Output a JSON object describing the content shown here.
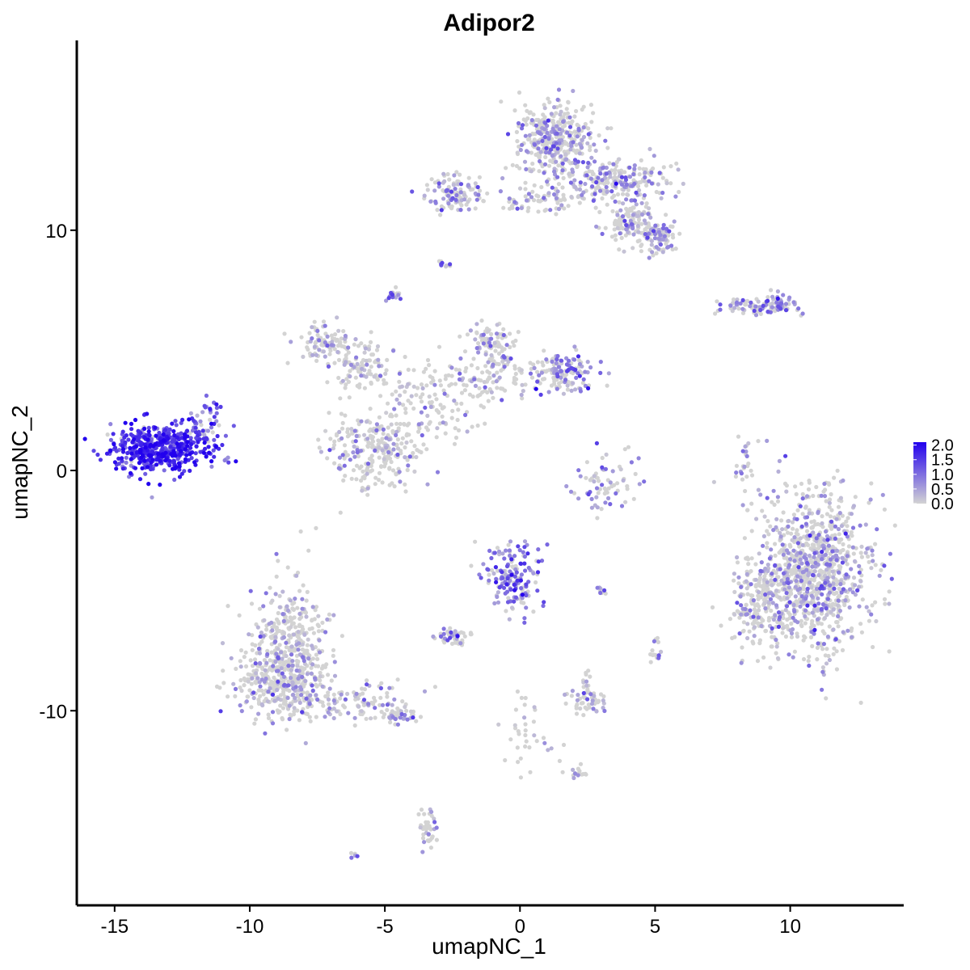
{
  "chart_data": {
    "type": "scatter",
    "title": "Adipor2",
    "xlabel": "umapNC_1",
    "ylabel": "umapNC_2",
    "xlim": [
      -16.4,
      14.2
    ],
    "ylim": [
      -18.1,
      17.9
    ],
    "x_ticks": [
      -15,
      -10,
      -5,
      0,
      5,
      10
    ],
    "y_ticks": [
      -10,
      0,
      10
    ],
    "x_tick_labels": [
      "-15",
      "-10",
      "-5",
      "0",
      "5",
      "10"
    ],
    "y_tick_labels": [
      "-10",
      "0",
      "10"
    ],
    "grid": false,
    "color_scale": {
      "low": "#d3d3d3",
      "high": "#2200ee",
      "min": 0.0,
      "max": 2.1,
      "breaks": [
        2.0,
        1.5,
        1.0,
        0.5,
        0.0
      ],
      "break_labels": [
        "2.0",
        "1.5",
        "1.0",
        "0.5",
        "0.0"
      ],
      "position": "right"
    },
    "clusters": [
      {
        "cx": -13.3,
        "cy": 0.9,
        "sx": 0.9,
        "sy": 0.5,
        "n": 520,
        "expr": 1.6
      },
      {
        "cx": -11.6,
        "cy": 2.0,
        "sx": 0.35,
        "sy": 0.6,
        "n": 40,
        "expr": 1.2
      },
      {
        "cx": -8.5,
        "cy": -7.5,
        "sx": 0.8,
        "sy": 1.3,
        "n": 450,
        "expr": 0.35
      },
      {
        "cx": -9.1,
        "cy": -9.0,
        "sx": 0.9,
        "sy": 0.6,
        "n": 180,
        "expr": 0.35
      },
      {
        "cx": -6.2,
        "cy": -9.6,
        "sx": 1.1,
        "sy": 0.35,
        "n": 120,
        "expr": 0.4
      },
      {
        "cx": -4.5,
        "cy": -10.2,
        "sx": 0.5,
        "sy": 0.2,
        "n": 40,
        "expr": 0.6
      },
      {
        "cx": 10.8,
        "cy": -4.2,
        "sx": 1.1,
        "sy": 1.6,
        "n": 1000,
        "expr": 0.45
      },
      {
        "cx": 8.9,
        "cy": -5.8,
        "sx": 0.5,
        "sy": 0.8,
        "n": 160,
        "expr": 0.3
      },
      {
        "cx": 1.3,
        "cy": 13.8,
        "sx": 0.7,
        "sy": 0.8,
        "n": 380,
        "expr": 0.5
      },
      {
        "cx": 3.6,
        "cy": 12.0,
        "sx": 0.9,
        "sy": 0.5,
        "n": 220,
        "expr": 0.55
      },
      {
        "cx": 5.1,
        "cy": 9.7,
        "sx": 0.4,
        "sy": 0.35,
        "n": 100,
        "expr": 0.4
      },
      {
        "cx": 4.0,
        "cy": 10.4,
        "sx": 0.5,
        "sy": 0.5,
        "n": 100,
        "expr": 0.35
      },
      {
        "cx": -2.4,
        "cy": 11.5,
        "sx": 0.6,
        "sy": 0.35,
        "n": 110,
        "expr": 0.5
      },
      {
        "cx": 0.8,
        "cy": 11.3,
        "sx": 0.8,
        "sy": 0.3,
        "n": 80,
        "expr": 0.35
      },
      {
        "cx": -7.2,
        "cy": 5.3,
        "sx": 0.5,
        "sy": 0.45,
        "n": 90,
        "expr": 0.4
      },
      {
        "cx": -5.9,
        "cy": 4.4,
        "sx": 0.7,
        "sy": 0.5,
        "n": 100,
        "expr": 0.3
      },
      {
        "cx": -5.3,
        "cy": 0.9,
        "sx": 0.9,
        "sy": 0.8,
        "n": 260,
        "expr": 0.35
      },
      {
        "cx": -1.0,
        "cy": 5.2,
        "sx": 0.4,
        "sy": 0.6,
        "n": 100,
        "expr": 0.45
      },
      {
        "cx": 1.7,
        "cy": 4.1,
        "sx": 0.5,
        "sy": 0.4,
        "n": 120,
        "expr": 0.85
      },
      {
        "cx": -1.0,
        "cy": 3.8,
        "sx": 1.7,
        "sy": 0.4,
        "n": 130,
        "expr": 0.3
      },
      {
        "cx": -3.3,
        "cy": 2.7,
        "sx": 0.9,
        "sy": 0.7,
        "n": 90,
        "expr": 0.3
      },
      {
        "cx": 8.2,
        "cy": 6.8,
        "sx": 0.6,
        "sy": 0.15,
        "n": 50,
        "expr": 0.55
      },
      {
        "cx": 9.6,
        "cy": 6.9,
        "sx": 0.4,
        "sy": 0.25,
        "n": 60,
        "expr": 0.8
      },
      {
        "cx": -0.3,
        "cy": -4.3,
        "sx": 0.5,
        "sy": 0.7,
        "n": 170,
        "expr": 0.95
      },
      {
        "cx": -2.5,
        "cy": -6.9,
        "sx": 0.35,
        "sy": 0.25,
        "n": 45,
        "expr": 0.5
      },
      {
        "cx": 3.2,
        "cy": -0.6,
        "sx": 0.6,
        "sy": 0.6,
        "n": 70,
        "expr": 0.7
      },
      {
        "cx": 2.5,
        "cy": -9.6,
        "sx": 0.35,
        "sy": 0.25,
        "n": 50,
        "expr": 0.45
      },
      {
        "cx": -3.4,
        "cy": -14.8,
        "sx": 0.2,
        "sy": 0.5,
        "n": 40,
        "expr": 0.5
      },
      {
        "cx": -4.7,
        "cy": 7.3,
        "sx": 0.15,
        "sy": 0.15,
        "n": 18,
        "expr": 1.0
      },
      {
        "cx": -2.8,
        "cy": 8.6,
        "sx": 0.15,
        "sy": 0.12,
        "n": 10,
        "expr": 0.8
      },
      {
        "cx": 8.3,
        "cy": 0.2,
        "sx": 0.2,
        "sy": 0.6,
        "n": 25,
        "expr": 0.4
      },
      {
        "cx": 0.3,
        "cy": -11.2,
        "sx": 0.5,
        "sy": 1.0,
        "n": 35,
        "expr": 0.25
      },
      {
        "cx": 2.0,
        "cy": -12.6,
        "sx": 0.3,
        "sy": 0.15,
        "n": 15,
        "expr": 0.6
      },
      {
        "cx": 5.0,
        "cy": -7.4,
        "sx": 0.12,
        "sy": 0.25,
        "n": 15,
        "expr": 0.7
      },
      {
        "cx": 3.0,
        "cy": -5.0,
        "sx": 0.15,
        "sy": 0.08,
        "n": 8,
        "expr": 0.9
      },
      {
        "cx": 2.5,
        "cy": -8.7,
        "sx": 0.1,
        "sy": 0.2,
        "n": 10,
        "expr": 0.5
      },
      {
        "cx": 4.0,
        "cy": 10.2,
        "sx": 0.1,
        "sy": 0.08,
        "n": 8,
        "expr": 0.9
      },
      {
        "cx": -6.1,
        "cy": -16.0,
        "sx": 0.1,
        "sy": 0.05,
        "n": 6,
        "expr": 0.8
      }
    ]
  }
}
